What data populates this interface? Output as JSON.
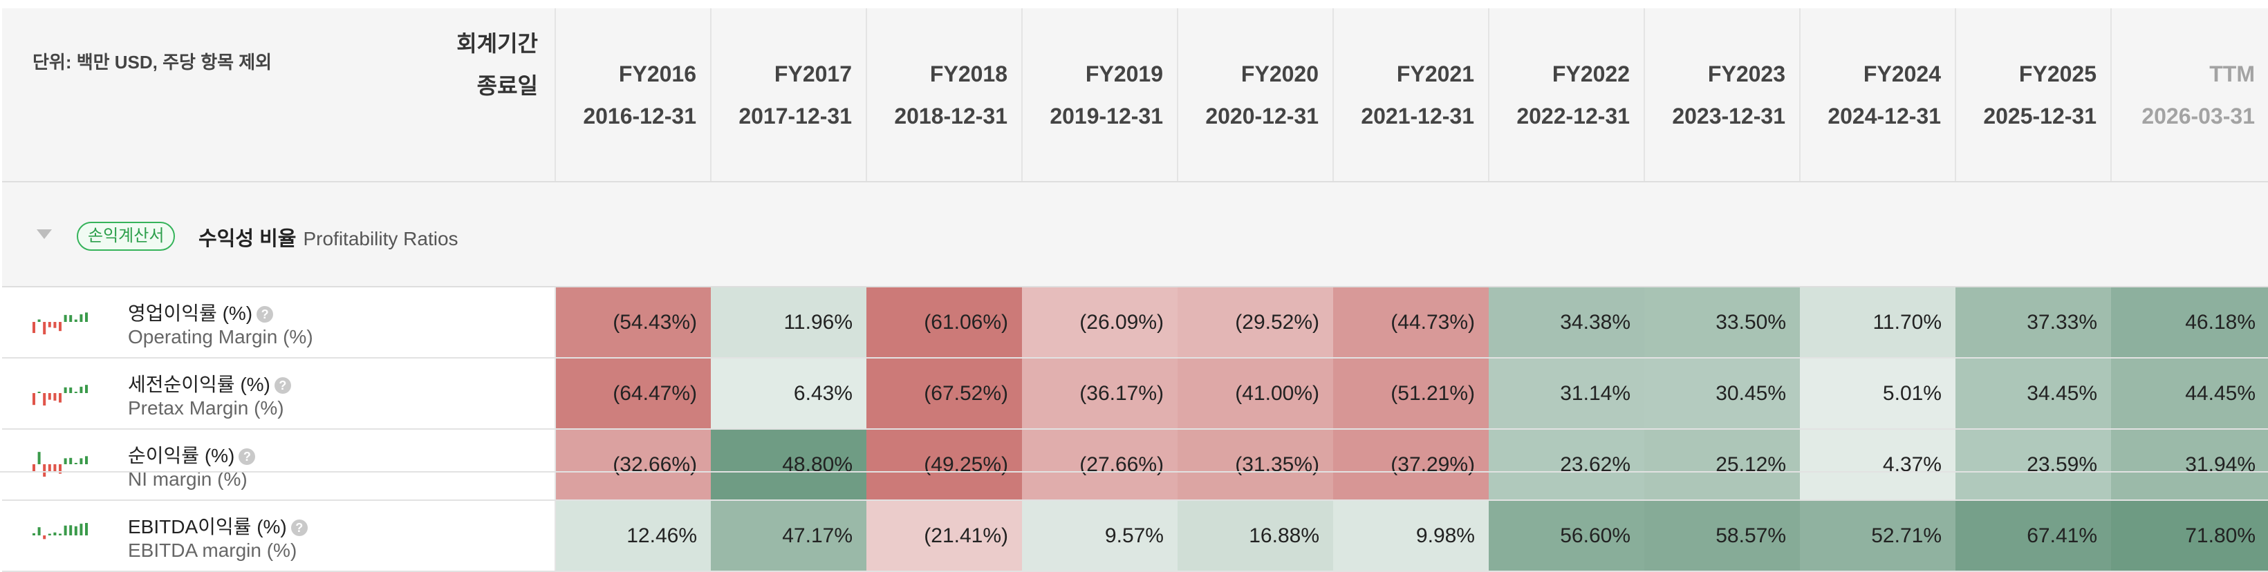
{
  "header": {
    "unit_note": "단위: 백만 USD, 주당 항목 제외",
    "fiscal_period_label": "회계기간",
    "end_date_label": "종료일",
    "periods": [
      {
        "fy": "FY2016",
        "date": "2016-12-31"
      },
      {
        "fy": "FY2017",
        "date": "2017-12-31"
      },
      {
        "fy": "FY2018",
        "date": "2018-12-31"
      },
      {
        "fy": "FY2019",
        "date": "2019-12-31"
      },
      {
        "fy": "FY2020",
        "date": "2020-12-31"
      },
      {
        "fy": "FY2021",
        "date": "2021-12-31"
      },
      {
        "fy": "FY2022",
        "date": "2022-12-31"
      },
      {
        "fy": "FY2023",
        "date": "2023-12-31"
      },
      {
        "fy": "FY2024",
        "date": "2024-12-31"
      },
      {
        "fy": "FY2025",
        "date": "2025-12-31"
      },
      {
        "fy": "TTM",
        "date": "2026-03-31"
      }
    ]
  },
  "section": {
    "badge": "손익계산서",
    "title_ko": "수익성 비율",
    "title_en": "Profitability Ratios"
  },
  "help_glyph": "?",
  "colors": {
    "negative": "#cc7a78",
    "positive": "#6e9b83",
    "spark_negative": "#e0554a",
    "spark_positive": "#3a9a4a"
  },
  "rows": [
    {
      "ko": "영업이익률 (%)",
      "en": "Operating Margin (%)",
      "values": [
        "(54.43%)",
        "11.96%",
        "(61.06%)",
        "(26.09%)",
        "(29.52%)",
        "(44.73%)",
        "34.38%",
        "33.50%",
        "11.70%",
        "37.33%",
        "46.18%"
      ],
      "nums": [
        -54.43,
        11.96,
        -61.06,
        -26.09,
        -29.52,
        -44.73,
        34.38,
        33.5,
        11.7,
        37.33,
        46.18
      ]
    },
    {
      "ko": "세전순이익률 (%)",
      "en": "Pretax Margin (%)",
      "values": [
        "(64.47%)",
        "6.43%",
        "(67.52%)",
        "(36.17%)",
        "(41.00%)",
        "(51.21%)",
        "31.14%",
        "30.45%",
        "5.01%",
        "34.45%",
        "44.45%"
      ],
      "nums": [
        -64.47,
        6.43,
        -67.52,
        -36.17,
        -41.0,
        -51.21,
        31.14,
        30.45,
        5.01,
        34.45,
        44.45
      ]
    },
    {
      "ko": "순이익률 (%)",
      "en": "NI margin (%)",
      "values": [
        "(32.66%)",
        "48.80%",
        "(49.25%)",
        "(27.66%)",
        "(31.35%)",
        "(37.29%)",
        "23.62%",
        "25.12%",
        "4.37%",
        "23.59%",
        "31.94%"
      ],
      "nums": [
        -32.66,
        48.8,
        -49.25,
        -27.66,
        -31.35,
        -37.29,
        23.62,
        25.12,
        4.37,
        23.59,
        31.94
      ]
    },
    {
      "ko": "EBITDA이익률 (%)",
      "en": "EBITDA margin (%)",
      "values": [
        "12.46%",
        "47.17%",
        "(21.41%)",
        "9.57%",
        "16.88%",
        "9.98%",
        "56.60%",
        "58.57%",
        "52.71%",
        "67.41%",
        "71.80%"
      ],
      "nums": [
        12.46,
        47.17,
        -21.41,
        9.57,
        16.88,
        9.98,
        56.6,
        58.57,
        52.71,
        67.41,
        71.8
      ]
    }
  ]
}
